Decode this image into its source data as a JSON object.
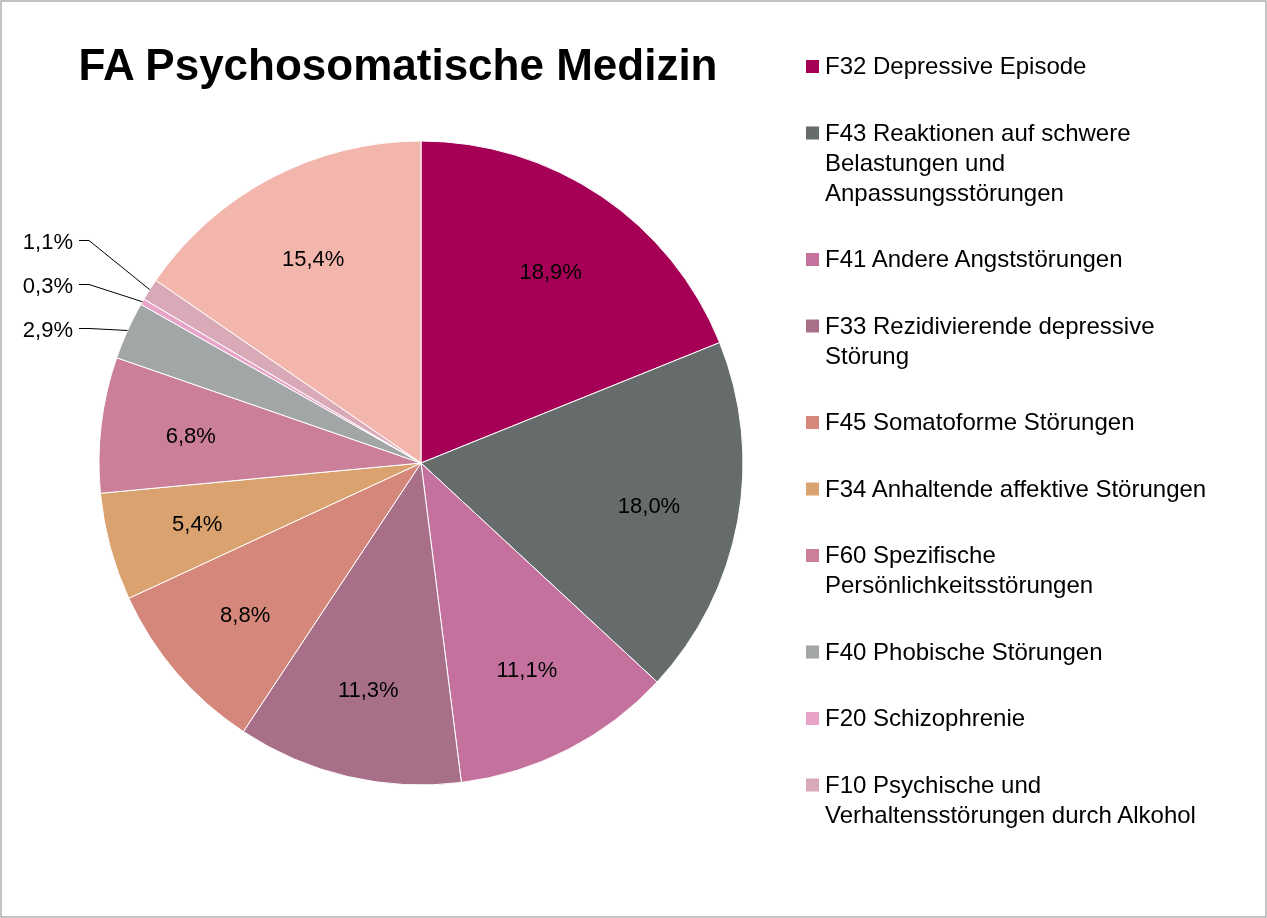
{
  "chart_data": {
    "type": "pie",
    "title": "FA Psychosomatische Medizin",
    "categories": [
      "F32 Depressive Episode",
      "F43 Reaktionen auf schwere Belastungen und Anpassungsstörungen",
      "F41 Andere Angststörungen",
      "F33 Rezidivierende depressive Störung",
      "F45 Somatoforme Störungen",
      "F34 Anhaltende affektive Störungen",
      "F60 Spezifische Persönlichkeitsstörungen",
      "F40 Phobische Störungen",
      "F20 Schizophrenie",
      "F10 Psychische und Verhaltensstörungen durch Alkohol",
      null
    ],
    "values": [
      18.9,
      18.0,
      11.1,
      11.3,
      8.8,
      5.4,
      6.8,
      2.9,
      0.3,
      1.1,
      15.4
    ],
    "value_labels": [
      "18,9%",
      "18,0%",
      "11,1%",
      "11,3%",
      "8,8%",
      "5,4%",
      "6,8%",
      "2,9%",
      "0,3%",
      "1,1%",
      "15,4%"
    ],
    "colors": [
      "#a50055",
      "#666b6b",
      "#c4719e",
      "#a87088",
      "#d4877a",
      "#daa26f",
      "#cb7f98",
      "#a3a6a6",
      "#e8a3c8",
      "#d9a9b8",
      "#f3b6ad"
    ],
    "legend": "right"
  }
}
